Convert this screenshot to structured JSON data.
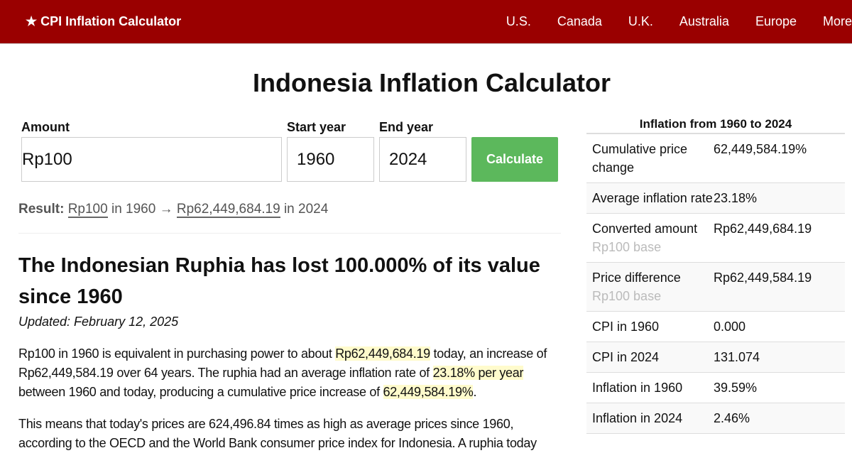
{
  "nav": {
    "brand": "★ CPI Inflation Calculator",
    "links": [
      "U.S.",
      "Canada",
      "U.K.",
      "Australia",
      "Europe",
      "More"
    ]
  },
  "title": "Indonesia Inflation Calculator",
  "form": {
    "amount_label": "Amount",
    "amount_value": "Rp100",
    "start_label": "Start year",
    "start_value": "1960",
    "end_label": "End year",
    "end_value": "2024",
    "calculate": "Calculate"
  },
  "result": {
    "label": "Result:",
    "amount": "Rp100",
    "in1": "in 1960",
    "arrow": "→",
    "converted": "Rp62,449,684.19",
    "in2": "in 2024"
  },
  "article": {
    "heading": "The Indonesian Ruphia has lost 100.000% of its value since 1960",
    "updated": "Updated: February 12, 2025",
    "p1": [
      "Rp100 in 1960 is equivalent in purchasing power to about ",
      "Rp62,449,684.19",
      " today, an increase of Rp62,449,584.19 over 64 years. The ruphia had an average inflation rate of ",
      "23.18% per year",
      " between 1960 and today, producing a cumulative price increase of ",
      "62,449,584.19%",
      "."
    ],
    "p2": "This means that today's prices are 624,496.84 times as high as average prices since 1960, according to the OECD and the World Bank consumer price index for Indonesia. A ruphia today"
  },
  "sidebar": {
    "title": "Inflation from 1960 to 2024",
    "rows": [
      {
        "k": "Cumulative price change",
        "v": "62,449,584.19%"
      },
      {
        "k": "Average inflation rate",
        "v": "23.18%"
      },
      {
        "k": "Converted amount",
        "sub": "Rp100 base",
        "v": "Rp62,449,684.19"
      },
      {
        "k": "Price difference",
        "sub": "Rp100 base",
        "v": "Rp62,449,584.19"
      },
      {
        "k": "CPI in 1960",
        "v": "0.000"
      },
      {
        "k": "CPI in 2024",
        "v": "131.074"
      },
      {
        "k": "Inflation in 1960",
        "v": "39.59%"
      },
      {
        "k": "Inflation in 2024",
        "v": "2.46%"
      }
    ]
  }
}
